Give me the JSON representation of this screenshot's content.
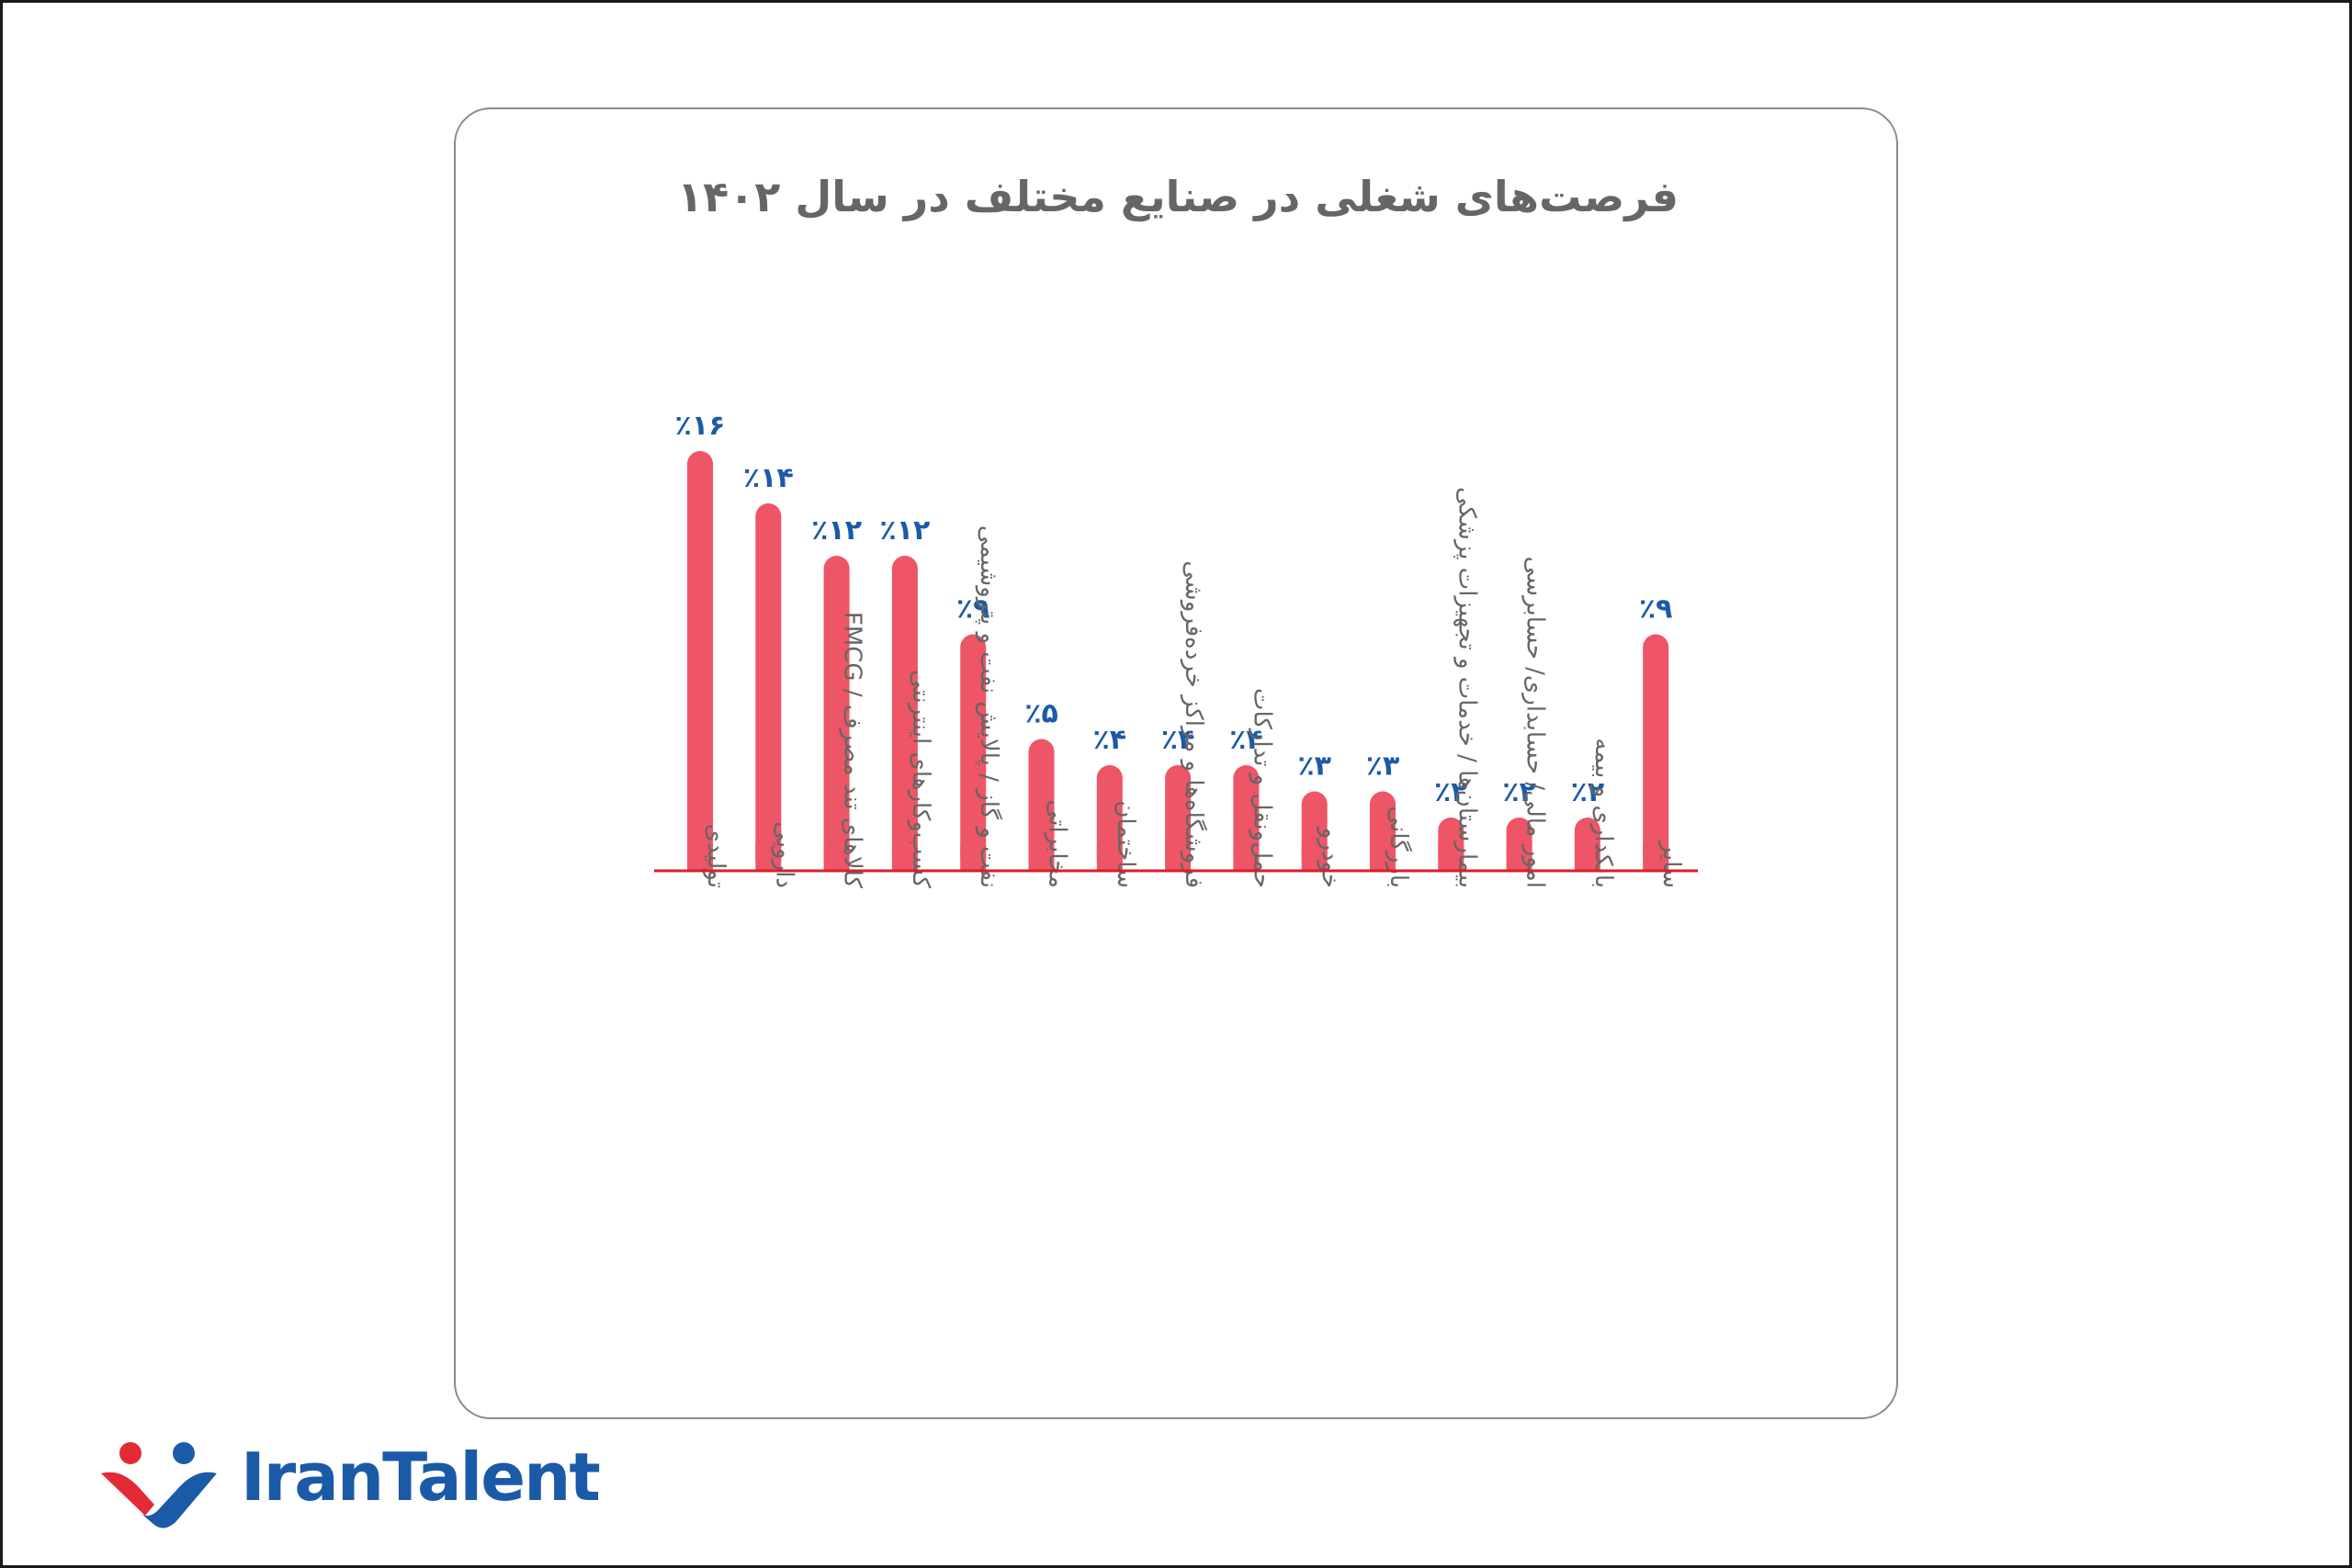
{
  "chart_data": {
    "type": "bar",
    "title": "فرصت‌های شغلی در صنایع مختلف در سال ۱۴۰۲",
    "categories": [
      "تولیدی",
      "دارویی",
      "کالاهای تند مصرف / FMCG",
      "کسب‌وکارهای اینترنتی",
      "نفت و گاز / پالایش نفت و پتروشیمی",
      "مخابراتی",
      "ساختمان",
      "فروشگاه‌ها و مراکز خرده‌فروشی",
      "حمل‌ونقل و تدارکات",
      "خودرو",
      "بازرگانی",
      "بیمارستان‌ها / خدمات و تجهیزات پزشکی",
      "امور مالی/ حسابداری/ حسابرسی",
      "بانکداری و بیمه",
      "سایر"
    ],
    "values": [
      16,
      14,
      12,
      12,
      9,
      5,
      4,
      4,
      4,
      3,
      3,
      2,
      2,
      2,
      9
    ],
    "value_labels": [
      "٪۱۶",
      "٪۱۴",
      "٪۱۲",
      "٪۱۲",
      "٪۹",
      "٪۵",
      "٪۴",
      "٪۴",
      "٪۴",
      "٪۳",
      "٪۳",
      "٪۲",
      "٪۲",
      "٪۲",
      "٪۹"
    ],
    "xlabel": "",
    "ylabel": "",
    "ylim": [
      0,
      16
    ],
    "grid": false,
    "legend": "none"
  },
  "colors": {
    "bar": "#ee5566",
    "axis_line": "#d81e2c",
    "value_label": "#1b5aa7",
    "category_label": "#666666",
    "title": "#666666",
    "brand_blue": "#1b5aa7",
    "brand_red": "#e32b36"
  },
  "logo": {
    "text": "IranTalent"
  }
}
